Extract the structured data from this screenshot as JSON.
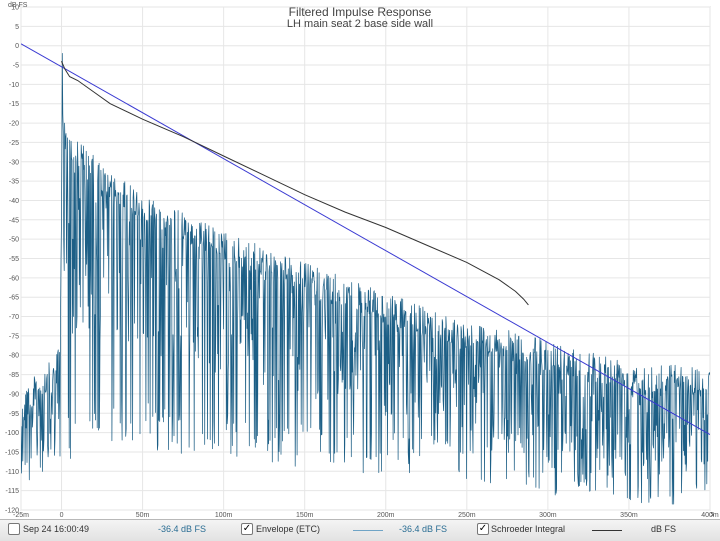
{
  "chart_data": {
    "type": "line",
    "title": "Filtered Impulse Response",
    "subtitle": "LH main seat 2 base side wall",
    "ylabel": "dB FS",
    "x_unit": "s",
    "xlim": [
      -25,
      400
    ],
    "ylim": [
      -120,
      10
    ],
    "x_ticks": [
      {
        "value": -25,
        "label": "-25m"
      },
      {
        "value": 0,
        "label": "0"
      },
      {
        "value": 50,
        "label": "50m"
      },
      {
        "value": 100,
        "label": "100m"
      },
      {
        "value": 150,
        "label": "150m"
      },
      {
        "value": 200,
        "label": "200m"
      },
      {
        "value": 250,
        "label": "250m"
      },
      {
        "value": 300,
        "label": "300m"
      },
      {
        "value": 350,
        "label": "350m"
      },
      {
        "value": 400,
        "label": "400m"
      }
    ],
    "y_ticks": [
      10,
      5,
      0,
      -5,
      -10,
      -15,
      -20,
      -25,
      -30,
      -35,
      -40,
      -45,
      -50,
      -55,
      -60,
      -65,
      -70,
      -75,
      -80,
      -85,
      -90,
      -95,
      -100,
      -105,
      -110,
      -115,
      -120
    ],
    "grid": true,
    "series": [
      {
        "name": "Envelope (ETC)",
        "color": "#1d5f86",
        "upper_envelope": {
          "x": [
            -25,
            -15,
            -8,
            -3,
            -1,
            0,
            0.5,
            1,
            3,
            10,
            30,
            60,
            100,
            150,
            200,
            250,
            300,
            350,
            400
          ],
          "y": [
            -87,
            -85,
            -82,
            -80,
            -75,
            -45,
            -2,
            -18,
            -20,
            -24,
            -33,
            -40,
            -48,
            -56,
            -64,
            -71,
            -76,
            -81,
            -83
          ]
        },
        "lower_envelope": {
          "x": [
            -25,
            -3,
            0,
            30,
            100,
            150,
            200,
            250,
            300,
            350,
            400
          ],
          "y": [
            -119,
            -114,
            -108,
            -103,
            -107,
            -109,
            -111,
            -113,
            -116,
            -118,
            -119
          ]
        }
      },
      {
        "name": "Schroeder Integral",
        "color": "#333333",
        "x": [
          0,
          2,
          5,
          10,
          20,
          30,
          50,
          75,
          100,
          125,
          150,
          175,
          200,
          225,
          250,
          270,
          280,
          285,
          288
        ],
        "y": [
          -4,
          -6,
          -8,
          -9,
          -12,
          -15,
          -19,
          -23.5,
          -28.5,
          -33.5,
          -38.5,
          -43,
          -47,
          -51.5,
          -56,
          -60.5,
          -63.5,
          -65.5,
          -67
        ]
      },
      {
        "name": "",
        "color": "#3a3ad2",
        "x": [
          -25,
          400
        ],
        "y": [
          0.5,
          -100.5
        ]
      }
    ]
  },
  "legend": {
    "date": "Sep 24 16:00:49",
    "envelope_value": "-36.4 dB FS",
    "envelope_label": "Envelope (ETC)",
    "schroeder_value": "-36.4 dB FS",
    "schroeder_label": "Schroeder Integral",
    "schroeder_unit": "dB FS",
    "envelope_checked": "✓",
    "schroeder_checked": "✓"
  }
}
